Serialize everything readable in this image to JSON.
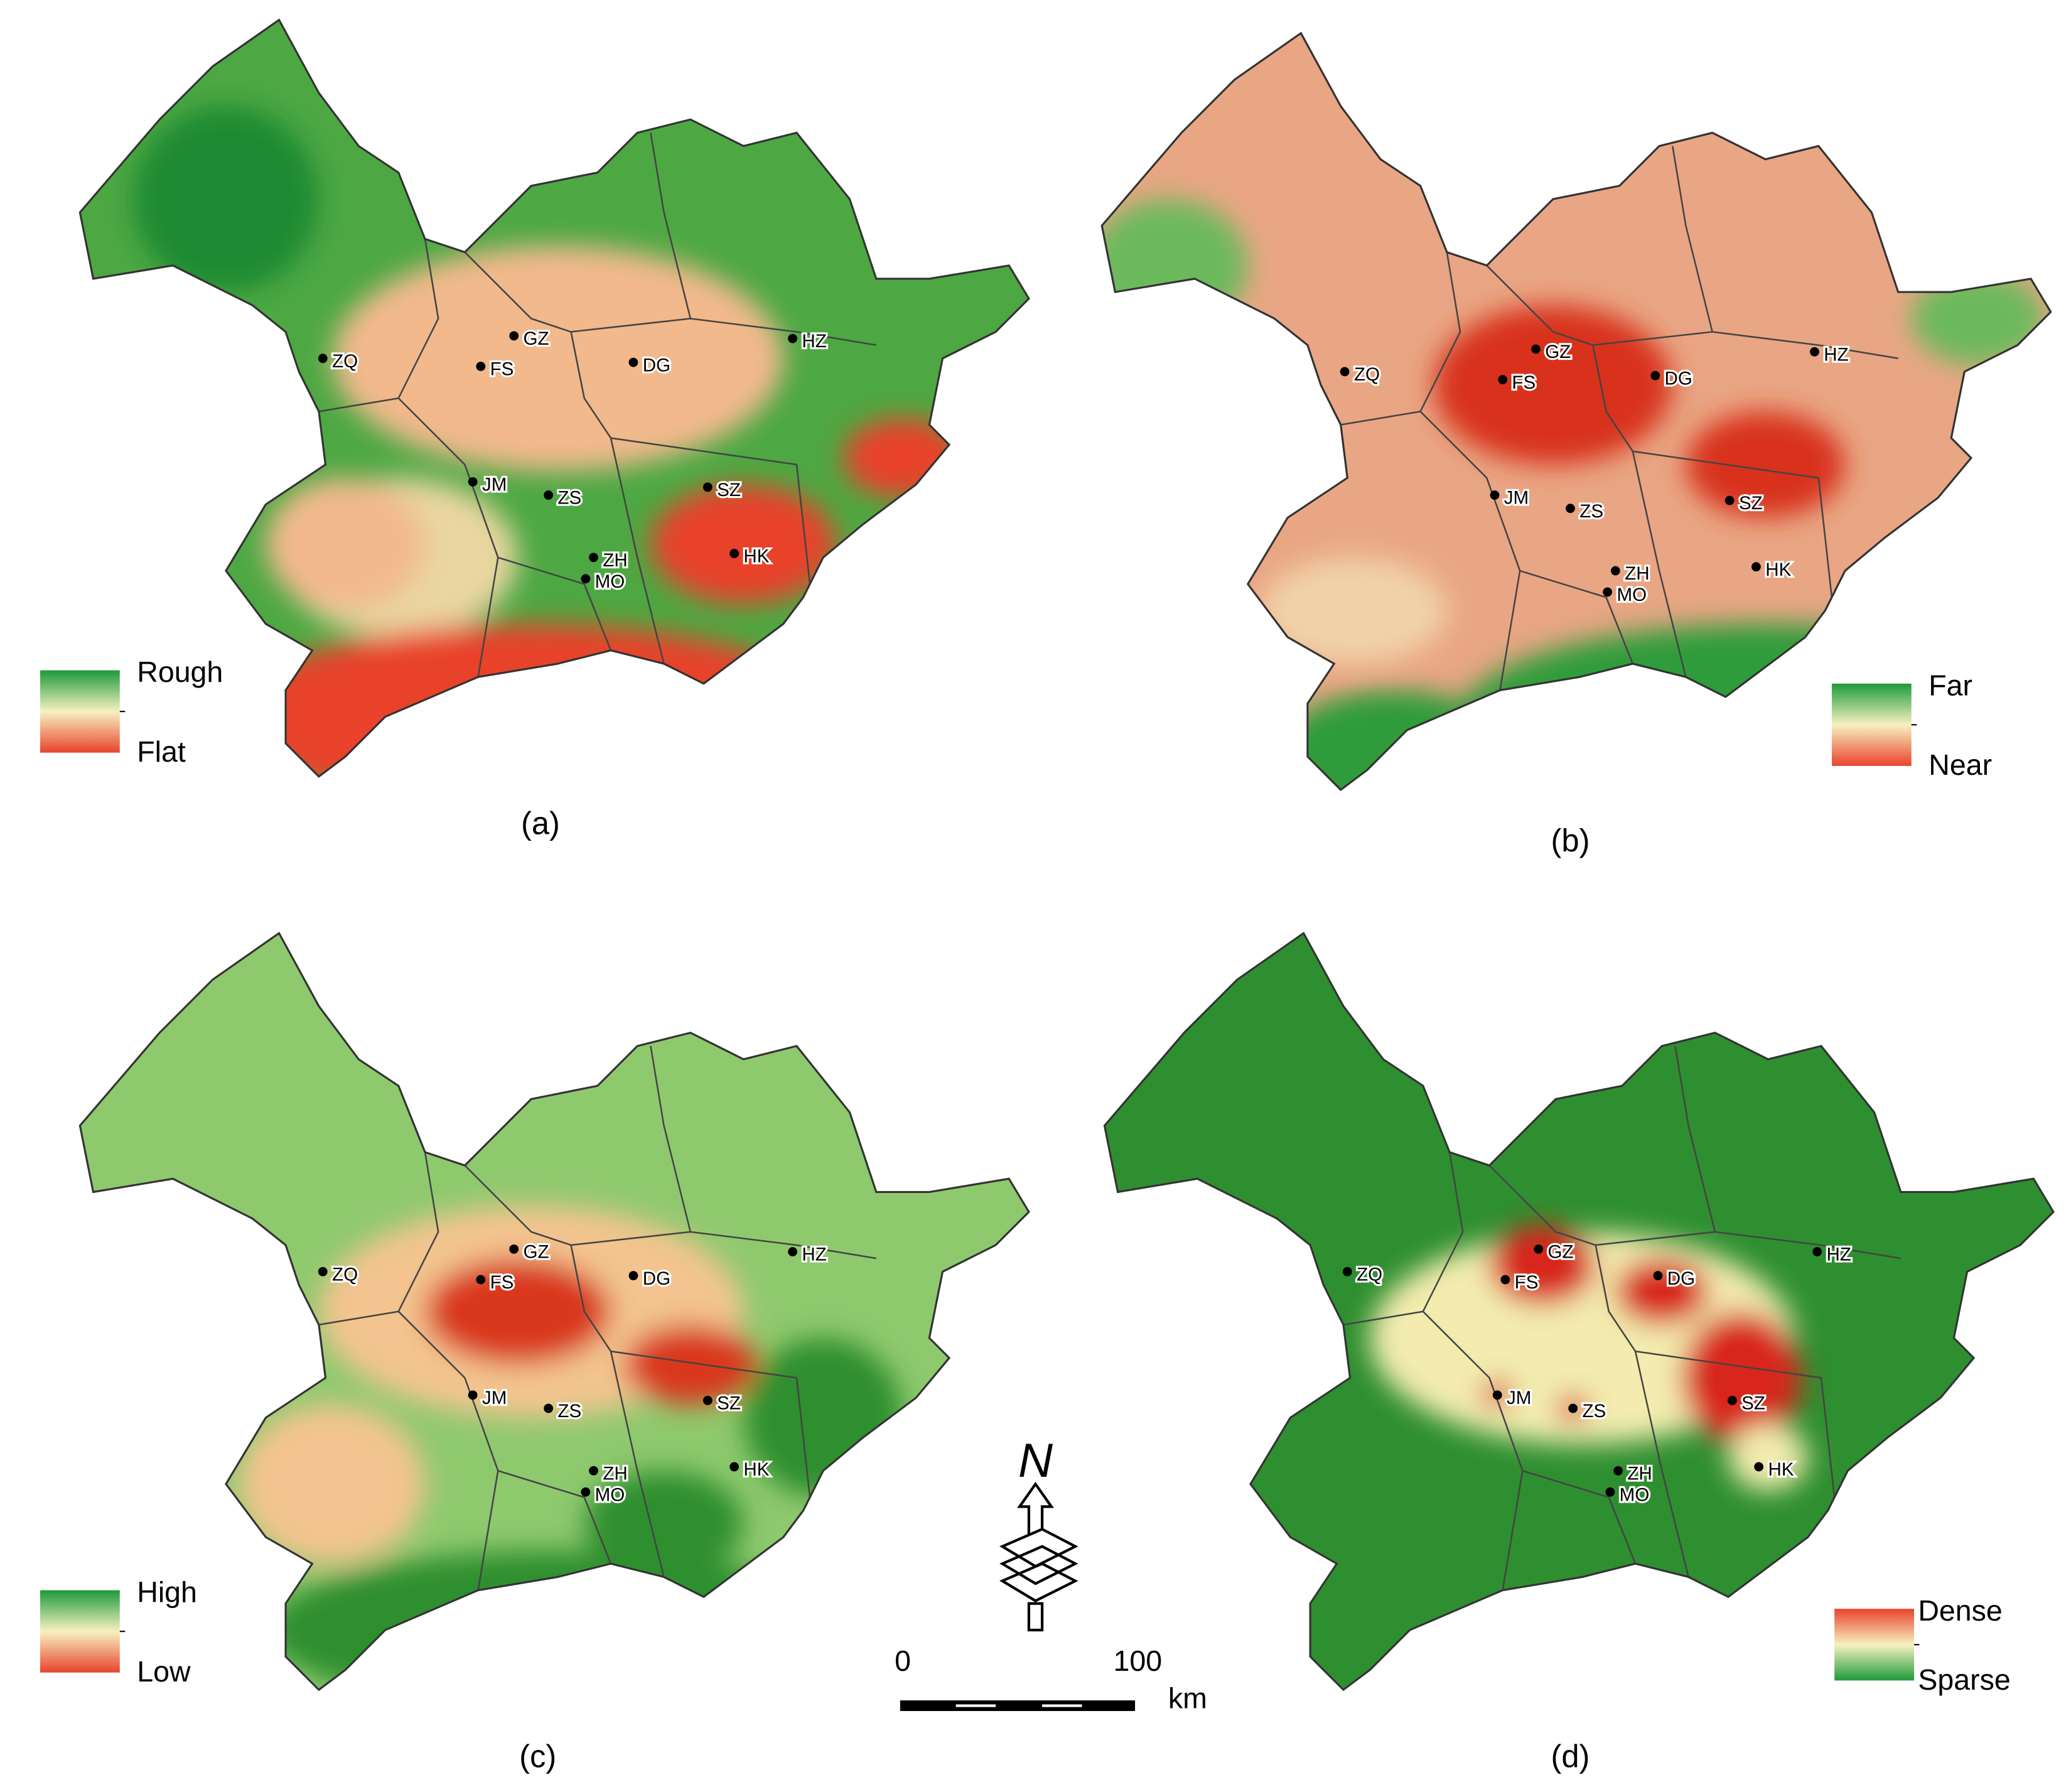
{
  "panels": [
    {
      "caption": "(a)",
      "legend": {
        "top": "Rough",
        "bottom": "Flat"
      },
      "cities": [
        "ZQ",
        "FS",
        "GZ",
        "DG",
        "HZ",
        "JM",
        "ZS",
        "SZ",
        "ZH",
        "MO",
        "HK"
      ]
    },
    {
      "caption": "(b)",
      "legend": {
        "top": "Far",
        "bottom": "Near"
      },
      "cities": [
        "ZQ",
        "FS",
        "GZ",
        "DG",
        "HZ",
        "JM",
        "ZS",
        "SZ",
        "ZH",
        "MO",
        "HK"
      ]
    },
    {
      "caption": "(c)",
      "legend": {
        "top": "High",
        "bottom": "Low"
      },
      "cities": [
        "ZQ",
        "FS",
        "GZ",
        "DG",
        "HZ",
        "JM",
        "ZS",
        "SZ",
        "ZH",
        "MO",
        "HK"
      ]
    },
    {
      "caption": "(d)",
      "legend": {
        "top": "Dense",
        "bottom": "Sparse"
      },
      "cities": [
        "ZQ",
        "FS",
        "GZ",
        "DG",
        "HZ",
        "JM",
        "ZS",
        "SZ",
        "ZH",
        "MO",
        "HK"
      ]
    }
  ],
  "scale_bar": {
    "start": "0",
    "end": "100",
    "unit": "km"
  },
  "north_arrow": {
    "label": "N"
  }
}
